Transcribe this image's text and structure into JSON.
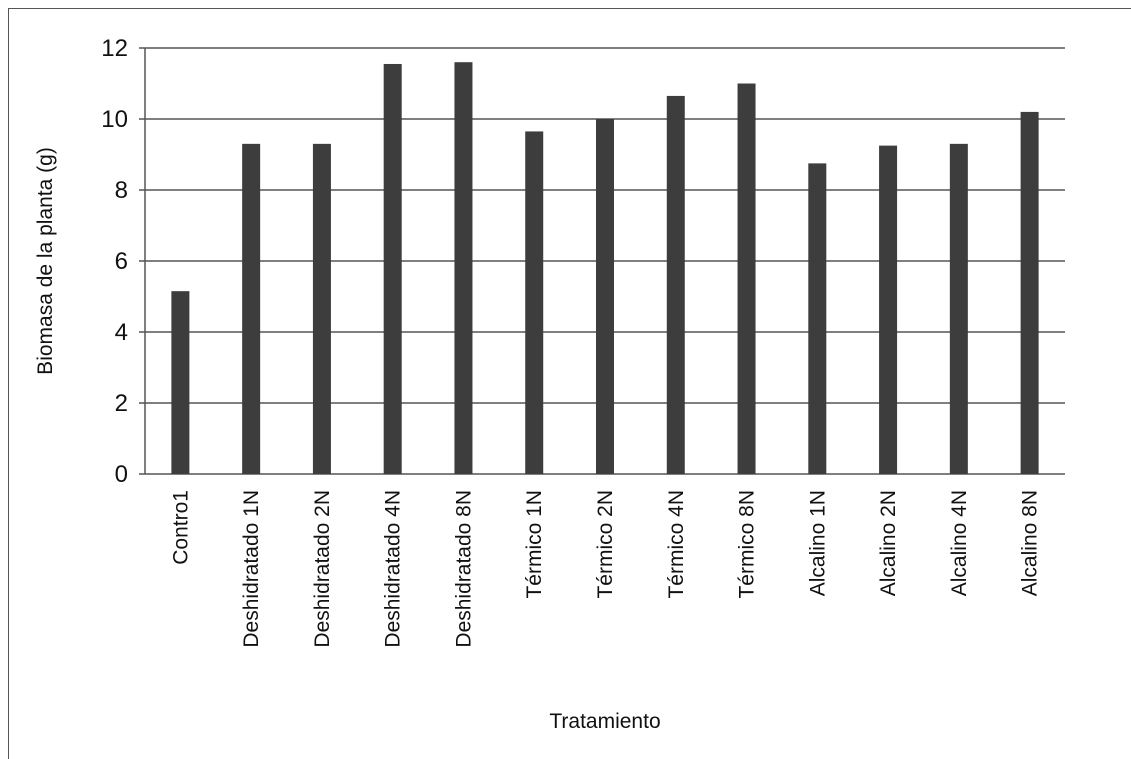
{
  "chart_data": {
    "type": "bar",
    "title": "",
    "xlabel": "Tratamiento",
    "ylabel": "Biomasa de la planta (g)",
    "ylim": [
      0,
      12
    ],
    "yticks": [
      0,
      2,
      4,
      6,
      8,
      10,
      12
    ],
    "grid": true,
    "legend": "none",
    "bar_color": "#3d3d3d",
    "grid_color": "#555555",
    "categories": [
      "Contro1",
      "Deshidratado 1N",
      "Deshidratado 2N",
      "Deshidratado 4N",
      "Deshidratado 8N",
      "Térmico 1N",
      "Térmico 2N",
      "Térmico 4N",
      "Térmico 8N",
      "Alcalino 1N",
      "Alcalino 2N",
      "Alcalino 4N",
      "Alcalino 8N"
    ],
    "values": [
      5.15,
      9.3,
      9.3,
      11.55,
      11.6,
      9.65,
      10.0,
      10.65,
      11.0,
      8.75,
      9.25,
      9.3,
      10.2
    ]
  }
}
